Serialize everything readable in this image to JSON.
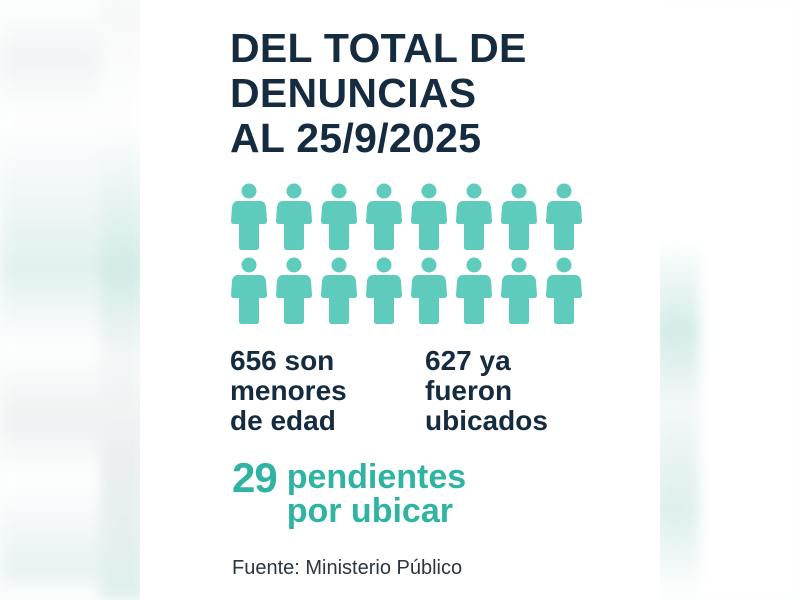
{
  "infographic": {
    "title_lines": [
      "DEL TOTAL DE",
      "DENUNCIAS",
      "AL 25/9/2025"
    ],
    "icons": {
      "type": "person-icon",
      "rows": 2,
      "per_row": 8,
      "color": "#5ecbbd"
    },
    "stats": {
      "minors": {
        "lines": [
          "656 son",
          "menores",
          "de edad"
        ],
        "value": 656
      },
      "located": {
        "lines": [
          "627 ya",
          "fueron",
          "ubicados"
        ],
        "value": 627
      }
    },
    "pending": {
      "number": "29",
      "lines": [
        "pendientes",
        "por ubicar"
      ],
      "color": "#2fb3a3"
    },
    "source": "Fuente: Ministerio Público"
  },
  "colors": {
    "title": "#152c40",
    "accent": "#2fb3a3",
    "icon": "#5ecbbd",
    "background": "#ffffff"
  }
}
